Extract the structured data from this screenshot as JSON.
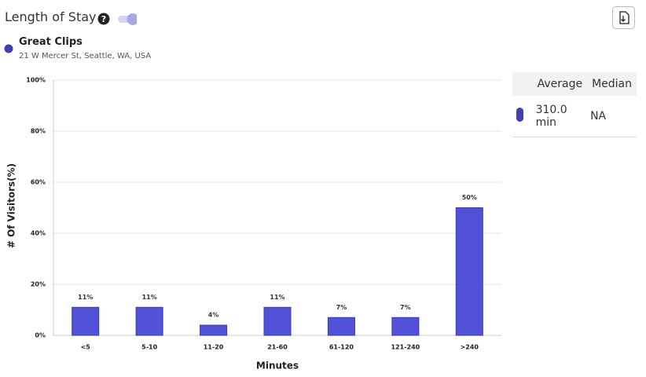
{
  "header": {
    "title": "Length of Stay"
  },
  "place": {
    "name": "Great Clips",
    "address": "21 W Mercer St, Seattle, WA, USA",
    "color": "#3f3fb0"
  },
  "table": {
    "headers": [
      "Average",
      "Median"
    ],
    "rows": [
      [
        "310.0 min",
        "NA"
      ]
    ]
  },
  "chart_data": {
    "type": "bar",
    "x_label": "Minutes",
    "y_label": "# Of Visitors(%)",
    "categories": [
      "<5",
      "5-10",
      "11-20",
      "21-60",
      "61-120",
      "121-240",
      ">240"
    ],
    "values": [
      11,
      11,
      4,
      11,
      7,
      7,
      50
    ],
    "value_labels": [
      "11%",
      "11%",
      "4%",
      "11%",
      "7%",
      "7%",
      "50%"
    ],
    "color": "#5252d9",
    "ylim": [
      0,
      100
    ],
    "yticks": [
      {
        "value": 0,
        "label": "0%"
      },
      {
        "value": 20,
        "label": "20%"
      },
      {
        "value": 40,
        "label": "40%"
      },
      {
        "value": 60,
        "label": "60%"
      },
      {
        "value": 80,
        "label": "80%"
      },
      {
        "value": 100,
        "label": "100%"
      }
    ],
    "grid": true
  }
}
